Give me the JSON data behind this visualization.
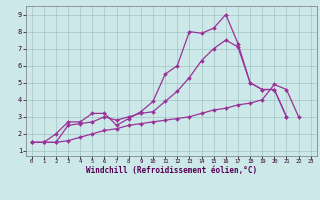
{
  "xlabel": "Windchill (Refroidissement éolien,°C)",
  "bg_color": "#cce8e8",
  "line_color": "#993399",
  "xlim": [
    -0.5,
    23.5
  ],
  "ylim": [
    0.7,
    9.5
  ],
  "xticks": [
    0,
    1,
    2,
    3,
    4,
    5,
    6,
    7,
    8,
    9,
    10,
    11,
    12,
    13,
    14,
    15,
    16,
    17,
    18,
    19,
    20,
    21,
    22,
    23
  ],
  "yticks": [
    1,
    2,
    3,
    4,
    5,
    6,
    7,
    8,
    9
  ],
  "series": [
    {
      "x": [
        0,
        1,
        2,
        3,
        4,
        5,
        6,
        7,
        8,
        9,
        10,
        11,
        12,
        13,
        14,
        15,
        16,
        17,
        18,
        19,
        20,
        21,
        22,
        23
      ],
      "y": [
        1.5,
        1.5,
        2.0,
        2.7,
        2.7,
        3.2,
        3.2,
        2.5,
        2.9,
        3.3,
        3.9,
        5.5,
        6.0,
        8.0,
        7.9,
        8.2,
        9.0,
        7.3,
        5.0,
        4.6,
        4.6,
        3.0,
        null,
        null
      ]
    },
    {
      "x": [
        0,
        1,
        2,
        3,
        4,
        5,
        6,
        7,
        8,
        9,
        10,
        11,
        12,
        13,
        14,
        15,
        16,
        17,
        18,
        19,
        20,
        21,
        22,
        23
      ],
      "y": [
        1.5,
        1.5,
        1.5,
        2.5,
        2.6,
        2.7,
        3.0,
        2.8,
        3.0,
        3.2,
        3.3,
        3.9,
        4.5,
        5.3,
        6.3,
        7.0,
        7.5,
        7.1,
        5.0,
        4.6,
        4.6,
        3.0,
        null,
        null
      ]
    },
    {
      "x": [
        0,
        1,
        2,
        3,
        4,
        5,
        6,
        7,
        8,
        9,
        10,
        11,
        12,
        13,
        14,
        15,
        16,
        17,
        18,
        19,
        20,
        21,
        22,
        23
      ],
      "y": [
        1.5,
        1.5,
        1.5,
        1.6,
        1.8,
        2.0,
        2.2,
        2.3,
        2.5,
        2.6,
        2.7,
        2.8,
        2.9,
        3.0,
        3.2,
        3.4,
        3.5,
        3.7,
        3.8,
        4.0,
        4.9,
        4.6,
        3.0,
        null
      ]
    }
  ]
}
